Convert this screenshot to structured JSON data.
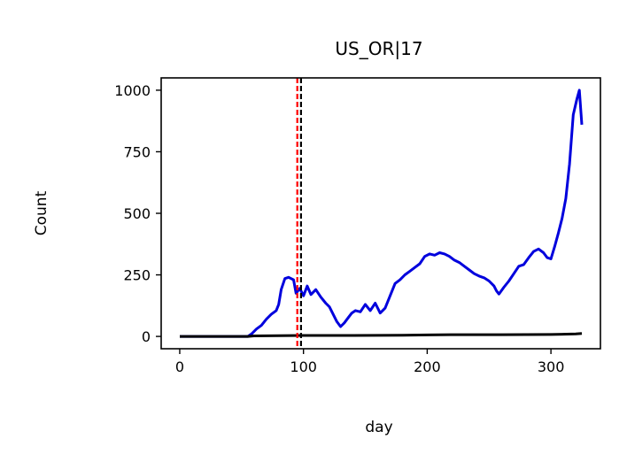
{
  "chart_data": {
    "type": "line",
    "title": "US_OR|17",
    "xlabel": "day",
    "ylabel": "Count",
    "xlim": [
      -15,
      340
    ],
    "ylim": [
      -50,
      1050
    ],
    "grid": false,
    "x_ticks": [
      0,
      100,
      200,
      300
    ],
    "y_ticks": [
      0,
      250,
      500,
      750,
      1000
    ],
    "x_tick_labels": [
      "0",
      "100",
      "200",
      "300"
    ],
    "y_tick_labels": [
      "0",
      "250",
      "500",
      "750",
      "1000"
    ],
    "series": [
      {
        "color": "#0000dd",
        "points": [
          [
            0,
            0
          ],
          [
            10,
            0
          ],
          [
            20,
            0
          ],
          [
            30,
            0
          ],
          [
            40,
            0
          ],
          [
            50,
            0
          ],
          [
            55,
            0
          ],
          [
            58,
            10
          ],
          [
            62,
            30
          ],
          [
            66,
            45
          ],
          [
            70,
            70
          ],
          [
            74,
            90
          ],
          [
            78,
            105
          ],
          [
            80,
            130
          ],
          [
            82,
            190
          ],
          [
            85,
            235
          ],
          [
            88,
            240
          ],
          [
            92,
            230
          ],
          [
            94,
            175
          ],
          [
            97,
            195
          ],
          [
            100,
            165
          ],
          [
            103,
            205
          ],
          [
            106,
            170
          ],
          [
            110,
            190
          ],
          [
            114,
            160
          ],
          [
            118,
            135
          ],
          [
            121,
            120
          ],
          [
            124,
            90
          ],
          [
            127,
            60
          ],
          [
            130,
            40
          ],
          [
            133,
            55
          ],
          [
            136,
            75
          ],
          [
            139,
            95
          ],
          [
            142,
            105
          ],
          [
            146,
            100
          ],
          [
            150,
            130
          ],
          [
            154,
            105
          ],
          [
            158,
            135
          ],
          [
            162,
            95
          ],
          [
            166,
            115
          ],
          [
            170,
            165
          ],
          [
            174,
            215
          ],
          [
            178,
            230
          ],
          [
            182,
            250
          ],
          [
            186,
            265
          ],
          [
            190,
            280
          ],
          [
            194,
            295
          ],
          [
            198,
            325
          ],
          [
            202,
            335
          ],
          [
            206,
            330
          ],
          [
            210,
            340
          ],
          [
            214,
            335
          ],
          [
            218,
            325
          ],
          [
            222,
            310
          ],
          [
            226,
            300
          ],
          [
            230,
            285
          ],
          [
            234,
            270
          ],
          [
            238,
            255
          ],
          [
            242,
            245
          ],
          [
            246,
            238
          ],
          [
            250,
            225
          ],
          [
            254,
            205
          ],
          [
            256,
            185
          ],
          [
            258,
            172
          ],
          [
            262,
            200
          ],
          [
            266,
            225
          ],
          [
            270,
            255
          ],
          [
            274,
            285
          ],
          [
            278,
            292
          ],
          [
            282,
            320
          ],
          [
            286,
            345
          ],
          [
            290,
            355
          ],
          [
            294,
            340
          ],
          [
            297,
            320
          ],
          [
            300,
            315
          ],
          [
            303,
            365
          ],
          [
            306,
            420
          ],
          [
            309,
            480
          ],
          [
            312,
            560
          ],
          [
            315,
            700
          ],
          [
            318,
            900
          ],
          [
            321,
            965
          ],
          [
            323,
            1000
          ],
          [
            325,
            860
          ]
        ]
      },
      {
        "color": "#000000",
        "points": [
          [
            0,
            0
          ],
          [
            20,
            0
          ],
          [
            40,
            0
          ],
          [
            55,
            0
          ],
          [
            60,
            2
          ],
          [
            80,
            3
          ],
          [
            100,
            4
          ],
          [
            140,
            4
          ],
          [
            180,
            5
          ],
          [
            200,
            6
          ],
          [
            220,
            7
          ],
          [
            260,
            7
          ],
          [
            300,
            8
          ],
          [
            320,
            10
          ],
          [
            325,
            12
          ]
        ]
      }
    ],
    "vlines": [
      {
        "x": 95,
        "color": "#ff0000",
        "style": "dashed"
      },
      {
        "x": 98,
        "color": "#000000",
        "style": "dashed"
      }
    ]
  }
}
